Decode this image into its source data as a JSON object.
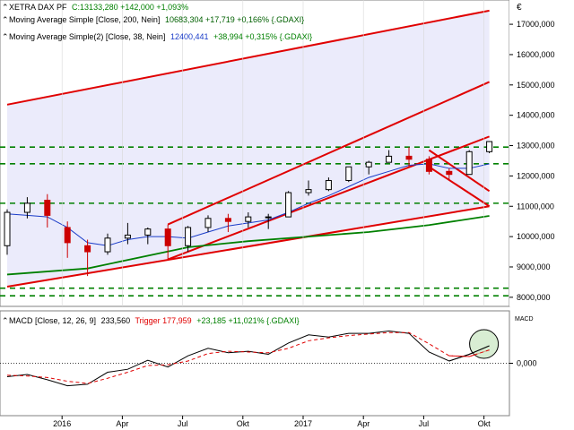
{
  "header": {
    "instrument": "XETRA DAX PF",
    "close_text": "C:13133,280 +142,000 +1,093%",
    "ma200_label": "Moving Average Simple [Close, 200, Nein]",
    "ma200_values": "10683,304 +17,719 +0,166% {.GDAXI}",
    "ma38_label": "Moving Average Simple(2) [Close, 38, Nein]",
    "ma38_values_part1": "12400,441",
    "ma38_values_part2": "+38,994 +0,315% {.GDAXI}"
  },
  "currency_symbol": "€",
  "macd_header": {
    "label": "MACD [Close, 12, 26, 9]",
    "value": "233,560",
    "trigger": "Trigger 177,959",
    "change": "+23,185 +11,021% {.GDAXI}"
  },
  "macd_axis_title": "MACD",
  "colors": {
    "up_candle": "#000000",
    "down_candle": "#cc0000",
    "ma200": "#008000",
    "ma38": "#1a3cc8",
    "trendline": "#e00000",
    "hline": "#008000",
    "channel_fill": "#e8e8fa",
    "macd_line": "#000000",
    "macd_signal": "#e00000",
    "header_value_color": "#008000",
    "ma38_value_color": "#1a3cc8"
  },
  "chart_data": [
    {
      "type": "candlestick",
      "x_tick_labels": [
        "2016",
        "Apr",
        "Jul",
        "Okt",
        "2017",
        "Apr",
        "Jul",
        "Okt"
      ],
      "x_tick_dates": [
        "2016-01",
        "2016-04",
        "2016-07",
        "2016-10",
        "2017-01",
        "2017-04",
        "2017-07",
        "2017-10"
      ],
      "y_tick_labels": [
        "17000,000",
        "16000,000",
        "15000,000",
        "14000,000",
        "13000,000",
        "12000,000",
        "11000,000",
        "10000,000",
        "9000,000",
        "8000,000"
      ],
      "y_ticks": [
        17000,
        16000,
        15000,
        14000,
        13000,
        12000,
        11000,
        10000,
        9000,
        8000
      ],
      "ylim": [
        7700,
        17800
      ],
      "monthly_ohlc": [
        {
          "month": "2015-10",
          "o": 9700,
          "h": 10900,
          "l": 9400,
          "c": 10800
        },
        {
          "month": "2015-11",
          "o": 10800,
          "h": 11300,
          "l": 10600,
          "c": 11100
        },
        {
          "month": "2015-12",
          "o": 11200,
          "h": 11400,
          "l": 10300,
          "c": 10700
        },
        {
          "month": "2016-01",
          "o": 10300,
          "h": 10500,
          "l": 9300,
          "c": 9800
        },
        {
          "month": "2016-02",
          "o": 9700,
          "h": 9900,
          "l": 8700,
          "c": 9500
        },
        {
          "month": "2016-03",
          "o": 9500,
          "h": 10100,
          "l": 9400,
          "c": 9950
        },
        {
          "month": "2016-04",
          "o": 9950,
          "h": 10450,
          "l": 9750,
          "c": 10050
        },
        {
          "month": "2016-05",
          "o": 10050,
          "h": 10300,
          "l": 9750,
          "c": 10250
        },
        {
          "month": "2016-06",
          "o": 10250,
          "h": 10400,
          "l": 9250,
          "c": 9700
        },
        {
          "month": "2016-07",
          "o": 9700,
          "h": 10350,
          "l": 9500,
          "c": 10300
        },
        {
          "month": "2016-08",
          "o": 10300,
          "h": 10700,
          "l": 10150,
          "c": 10600
        },
        {
          "month": "2016-09",
          "o": 10600,
          "h": 10750,
          "l": 10150,
          "c": 10500
        },
        {
          "month": "2016-10",
          "o": 10500,
          "h": 10800,
          "l": 10300,
          "c": 10650
        },
        {
          "month": "2016-11",
          "o": 10650,
          "h": 10750,
          "l": 10250,
          "c": 10650
        },
        {
          "month": "2016-12",
          "o": 10650,
          "h": 11500,
          "l": 10650,
          "c": 11450
        },
        {
          "month": "2017-01",
          "o": 11450,
          "h": 11850,
          "l": 11350,
          "c": 11550
        },
        {
          "month": "2017-02",
          "o": 11550,
          "h": 11950,
          "l": 11500,
          "c": 11850
        },
        {
          "month": "2017-03",
          "o": 11850,
          "h": 12300,
          "l": 11800,
          "c": 12300
        },
        {
          "month": "2017-04",
          "o": 12300,
          "h": 12500,
          "l": 12050,
          "c": 12450
        },
        {
          "month": "2017-05",
          "o": 12450,
          "h": 12850,
          "l": 12450,
          "c": 12650
        },
        {
          "month": "2017-06",
          "o": 12650,
          "h": 12950,
          "l": 12300,
          "c": 12550
        },
        {
          "month": "2017-07",
          "o": 12550,
          "h": 12650,
          "l": 12050,
          "c": 12150
        },
        {
          "month": "2017-08",
          "o": 12150,
          "h": 12250,
          "l": 11850,
          "c": 12050
        },
        {
          "month": "2017-09",
          "o": 12050,
          "h": 12850,
          "l": 12050,
          "c": 12800
        },
        {
          "month": "2017-10",
          "o": 12800,
          "h": 13150,
          "l": 12750,
          "c": 13133
        }
      ],
      "ma200": [
        {
          "month": "2015-10",
          "v": 8750
        },
        {
          "month": "2016-02",
          "v": 8950
        },
        {
          "month": "2016-07",
          "v": 9650
        },
        {
          "month": "2016-10",
          "v": 9850
        },
        {
          "month": "2017-01",
          "v": 10000
        },
        {
          "month": "2017-04",
          "v": 10150
        },
        {
          "month": "2017-07",
          "v": 10380
        },
        {
          "month": "2017-10",
          "v": 10683
        }
      ],
      "ma38": [
        {
          "month": "2015-10",
          "v": 10750
        },
        {
          "month": "2015-11",
          "v": 10700
        },
        {
          "month": "2015-12",
          "v": 10650
        },
        {
          "month": "2016-01",
          "v": 10300
        },
        {
          "month": "2016-02",
          "v": 9800
        },
        {
          "month": "2016-03",
          "v": 9700
        },
        {
          "month": "2016-04",
          "v": 9900
        },
        {
          "month": "2016-05",
          "v": 10000
        },
        {
          "month": "2016-06",
          "v": 10000
        },
        {
          "month": "2016-07",
          "v": 9950
        },
        {
          "month": "2016-08",
          "v": 10150
        },
        {
          "month": "2016-09",
          "v": 10350
        },
        {
          "month": "2016-10",
          "v": 10450
        },
        {
          "month": "2016-11",
          "v": 10550
        },
        {
          "month": "2016-12",
          "v": 10800
        },
        {
          "month": "2017-01",
          "v": 11100
        },
        {
          "month": "2017-02",
          "v": 11350
        },
        {
          "month": "2017-03",
          "v": 11650
        },
        {
          "month": "2017-04",
          "v": 11950
        },
        {
          "month": "2017-05",
          "v": 12150
        },
        {
          "month": "2017-06",
          "v": 12350
        },
        {
          "month": "2017-07",
          "v": 12400
        },
        {
          "month": "2017-08",
          "v": 12250
        },
        {
          "month": "2017-09",
          "v": 12250
        },
        {
          "month": "2017-10",
          "v": 12400
        }
      ],
      "horizontal_levels": [
        12950,
        12400,
        11100,
        8300,
        8050
      ],
      "trendlines": [
        {
          "from": {
            "month": "2015-10",
            "v": 14350
          },
          "to": {
            "month": "2017-10",
            "v": 17450
          }
        },
        {
          "from": {
            "month": "2015-10",
            "v": 8350
          },
          "to": {
            "month": "2017-10",
            "v": 11000
          }
        },
        {
          "from": {
            "month": "2016-06",
            "v": 10400
          },
          "to": {
            "month": "2017-10",
            "v": 15100
          }
        },
        {
          "from": {
            "month": "2016-06",
            "v": 9250
          },
          "to": {
            "month": "2017-10",
            "v": 13300
          }
        },
        {
          "from": {
            "month": "2017-07",
            "v": 12850
          },
          "to": {
            "month": "2017-10",
            "v": 11500
          }
        },
        {
          "from": {
            "month": "2017-07",
            "v": 12300
          },
          "to": {
            "month": "2017-10",
            "v": 11000
          }
        }
      ]
    },
    {
      "type": "line",
      "title": "MACD [Close, 12, 26, 9]",
      "y_tick_labels": [
        "0,000"
      ],
      "ylim": [
        -700,
        700
      ],
      "series": [
        {
          "name": "MACD",
          "points": [
            {
              "month": "2015-10",
              "v": -180
            },
            {
              "month": "2015-11",
              "v": -150
            },
            {
              "month": "2015-12",
              "v": -220
            },
            {
              "month": "2016-01",
              "v": -300
            },
            {
              "month": "2016-02",
              "v": -280
            },
            {
              "month": "2016-03",
              "v": -120
            },
            {
              "month": "2016-04",
              "v": -80
            },
            {
              "month": "2016-05",
              "v": 40
            },
            {
              "month": "2016-06",
              "v": -50
            },
            {
              "month": "2016-07",
              "v": 100
            },
            {
              "month": "2016-08",
              "v": 200
            },
            {
              "month": "2016-09",
              "v": 140
            },
            {
              "month": "2016-10",
              "v": 160
            },
            {
              "month": "2016-11",
              "v": 120
            },
            {
              "month": "2016-12",
              "v": 270
            },
            {
              "month": "2017-01",
              "v": 380
            },
            {
              "month": "2017-02",
              "v": 350
            },
            {
              "month": "2017-03",
              "v": 400
            },
            {
              "month": "2017-04",
              "v": 400
            },
            {
              "month": "2017-05",
              "v": 430
            },
            {
              "month": "2017-06",
              "v": 400
            },
            {
              "month": "2017-07",
              "v": 150
            },
            {
              "month": "2017-08",
              "v": 30
            },
            {
              "month": "2017-09",
              "v": 120
            },
            {
              "month": "2017-10",
              "v": 233.56
            }
          ]
        },
        {
          "name": "Trigger",
          "points": [
            {
              "month": "2015-10",
              "v": -160
            },
            {
              "month": "2015-11",
              "v": -170
            },
            {
              "month": "2015-12",
              "v": -190
            },
            {
              "month": "2016-01",
              "v": -240
            },
            {
              "month": "2016-02",
              "v": -270
            },
            {
              "month": "2016-03",
              "v": -200
            },
            {
              "month": "2016-04",
              "v": -120
            },
            {
              "month": "2016-05",
              "v": -30
            },
            {
              "month": "2016-06",
              "v": -20
            },
            {
              "month": "2016-07",
              "v": 30
            },
            {
              "month": "2016-08",
              "v": 130
            },
            {
              "month": "2016-09",
              "v": 160
            },
            {
              "month": "2016-10",
              "v": 150
            },
            {
              "month": "2016-11",
              "v": 140
            },
            {
              "month": "2016-12",
              "v": 200
            },
            {
              "month": "2017-01",
              "v": 300
            },
            {
              "month": "2017-02",
              "v": 340
            },
            {
              "month": "2017-03",
              "v": 370
            },
            {
              "month": "2017-04",
              "v": 390
            },
            {
              "month": "2017-05",
              "v": 410
            },
            {
              "month": "2017-06",
              "v": 410
            },
            {
              "month": "2017-07",
              "v": 260
            },
            {
              "month": "2017-08",
              "v": 100
            },
            {
              "month": "2017-09",
              "v": 90
            },
            {
              "month": "2017-10",
              "v": 177.959
            }
          ]
        }
      ]
    }
  ]
}
